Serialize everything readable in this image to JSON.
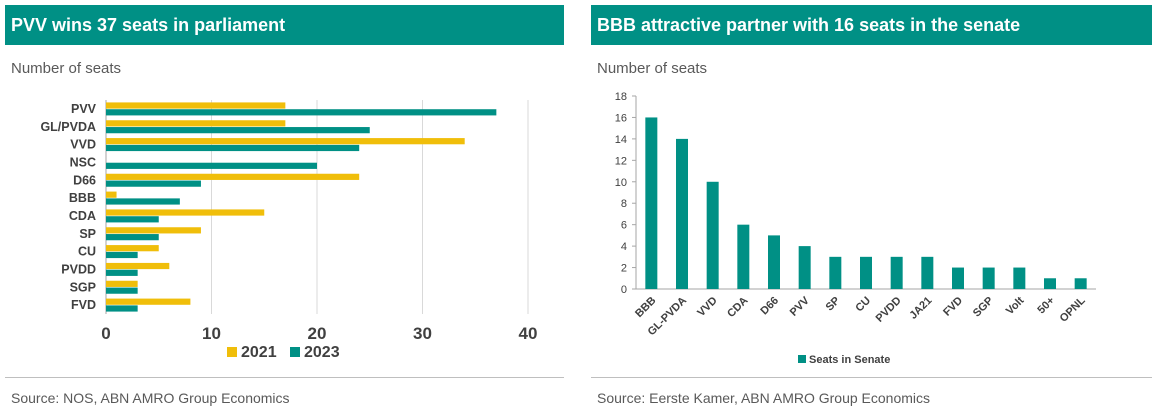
{
  "panels": {
    "left": {
      "title": "PVV wins 37 seats in parliament",
      "subtitle": "Number of seats",
      "source": "Source: NOS, ABN AMRO Group Economics"
    },
    "right": {
      "title": "BBB attractive partner with 16 seats in the senate",
      "subtitle": "Number of seats",
      "source": "Source: Eerste Kamer, ABN AMRO Group Economics"
    }
  },
  "colors": {
    "teal": "#009085",
    "gold": "#f0be0a",
    "grid": "#d9d9d9",
    "axis": "#a6a6a6",
    "text": "#404040"
  },
  "chart_data": [
    {
      "type": "bar",
      "orientation": "horizontal",
      "title": "PVV wins 37 seats in parliament",
      "ylabel": "Number of seats",
      "categories": [
        "PVV",
        "GL/PVDA",
        "VVD",
        "NSC",
        "D66",
        "BBB",
        "CDA",
        "SP",
        "CU",
        "PVDD",
        "SGP",
        "FVD"
      ],
      "series": [
        {
          "name": "2021",
          "values": [
            17,
            17,
            34,
            0,
            24,
            1,
            15,
            9,
            5,
            6,
            3,
            8
          ]
        },
        {
          "name": "2023",
          "values": [
            37,
            25,
            24,
            20,
            9,
            7,
            5,
            5,
            3,
            3,
            3,
            3
          ]
        }
      ],
      "xlim": [
        0,
        40
      ],
      "xticks": [
        "0",
        "10",
        "20",
        "30",
        "40"
      ],
      "grid": true,
      "legend": "bottom"
    },
    {
      "type": "bar",
      "orientation": "vertical",
      "title": "BBB attractive partner with 16 seats in the senate",
      "ylabel": "Number of seats",
      "categories": [
        "BBB",
        "GL-PVDA",
        "VVD",
        "CDA",
        "D66",
        "PVV",
        "SP",
        "CU",
        "PVDD",
        "JA21",
        "FVD",
        "SGP",
        "Volt",
        "50+",
        "OPNL"
      ],
      "series": [
        {
          "name": "Seats in Senate",
          "values": [
            16,
            14,
            10,
            6,
            5,
            4,
            3,
            3,
            3,
            3,
            2,
            2,
            2,
            1,
            1
          ]
        }
      ],
      "ylim": [
        0,
        18
      ],
      "yticks": [
        "0",
        "2",
        "4",
        "6",
        "8",
        "10",
        "12",
        "14",
        "16",
        "18"
      ],
      "grid": false,
      "legend": "bottom"
    }
  ]
}
